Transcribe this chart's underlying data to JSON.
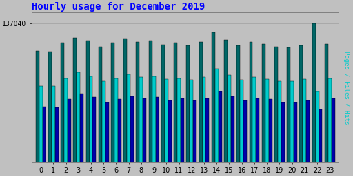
{
  "title": "Hourly usage for December 2019",
  "hours": [
    0,
    1,
    2,
    3,
    4,
    5,
    6,
    7,
    8,
    9,
    10,
    11,
    12,
    13,
    14,
    15,
    16,
    17,
    18,
    19,
    20,
    21,
    22,
    23
  ],
  "hits": [
    55000,
    54000,
    62000,
    68000,
    64000,
    59000,
    62000,
    65000,
    63000,
    64000,
    61000,
    63000,
    61000,
    63000,
    70000,
    65000,
    61000,
    63000,
    62000,
    59000,
    59000,
    61000,
    52000,
    63000
  ],
  "files": [
    75000,
    75000,
    83000,
    89000,
    85000,
    80000,
    83000,
    87000,
    84000,
    85000,
    82000,
    83000,
    81000,
    84000,
    92000,
    86000,
    81000,
    84000,
    82000,
    80000,
    80000,
    82000,
    70000,
    83000
  ],
  "pages": [
    110000,
    109000,
    118000,
    123000,
    120000,
    114000,
    118000,
    122000,
    119000,
    120000,
    116000,
    118000,
    115000,
    119000,
    128000,
    121000,
    115000,
    119000,
    117000,
    114000,
    113000,
    115000,
    137040,
    117000
  ],
  "ymax": 137040,
  "ytick_label": "137040",
  "bar_width": 0.27,
  "color_pages": "#006666",
  "color_files": "#00CCCC",
  "color_hits": "#0000AA",
  "bg_color": "#C0C0C0",
  "title_color": "#0000FF",
  "ylabel_color": "#00CCCC",
  "ylabel_text": "Pages / Files / Hits",
  "tick_fontsize": 7,
  "title_fontsize": 10
}
